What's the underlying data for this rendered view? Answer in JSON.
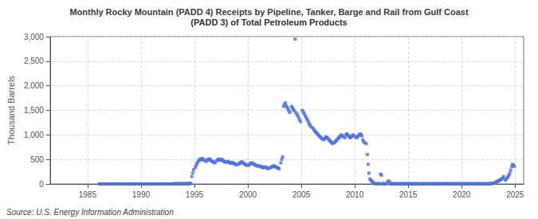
{
  "chart_data": {
    "type": "scatter",
    "title": "Monthly Rocky Mountain (PADD 4) Receipts by Pipeline, Tanker, Barge and Rail from Gulf Coast",
    "subtitle": "(PADD 3) of Total Petroleum Products",
    "ylabel": "Thousand Barrels",
    "source": "Source: U.S. Energy Information Administration",
    "marker": "square",
    "grid": true,
    "xlim": [
      1981.5,
      2025.8
    ],
    "xticks": [
      1985,
      1990,
      1995,
      2000,
      2005,
      2010,
      2015,
      2020,
      2025
    ],
    "ylim": [
      0,
      3000
    ],
    "yticks": [
      0,
      500,
      {
        "value": 1000,
        "label": "1,000"
      },
      {
        "value": 1500,
        "label": "1,500"
      },
      {
        "value": 2000,
        "label": "2,000"
      },
      {
        "value": 2500,
        "label": "2,500"
      },
      {
        "value": 3000,
        "label": "3,000"
      }
    ],
    "x": [
      1986.08,
      1986.17,
      1986.25,
      1986.33,
      1986.42,
      1986.5,
      1986.58,
      1986.67,
      1986.75,
      1986.83,
      1986.92,
      1987.08,
      1987.17,
      1987.25,
      1987.33,
      1987.42,
      1987.5,
      1987.58,
      1987.67,
      1987.75,
      1987.83,
      1987.92,
      1988.08,
      1988.17,
      1988.25,
      1988.33,
      1988.42,
      1988.5,
      1988.58,
      1988.67,
      1988.75,
      1988.83,
      1988.92,
      1989.08,
      1989.17,
      1989.25,
      1989.33,
      1989.42,
      1989.5,
      1989.58,
      1989.67,
      1989.75,
      1989.83,
      1989.92,
      1990.08,
      1990.17,
      1990.25,
      1990.33,
      1990.42,
      1990.5,
      1990.58,
      1990.67,
      1990.75,
      1990.83,
      1990.92,
      1991.08,
      1991.17,
      1991.25,
      1991.33,
      1991.42,
      1991.5,
      1991.58,
      1991.67,
      1991.75,
      1991.83,
      1991.92,
      1992.08,
      1992.17,
      1992.25,
      1992.33,
      1992.42,
      1992.5,
      1992.58,
      1992.67,
      1992.75,
      1992.83,
      1992.92,
      1993.08,
      1993.17,
      1993.25,
      1993.33,
      1993.42,
      1993.5,
      1993.58,
      1993.67,
      1993.75,
      1993.83,
      1993.92,
      1994.08,
      1994.17,
      1994.25,
      1994.33,
      1994.42,
      1994.5,
      1994.58,
      1994.67,
      1994.75,
      1994.83,
      1994.92,
      1995.08,
      1995.17,
      1995.25,
      1995.33,
      1995.42,
      1995.5,
      1995.58,
      1995.67,
      1995.75,
      1995.83,
      1995.92,
      1996.08,
      1996.17,
      1996.25,
      1996.33,
      1996.42,
      1996.5,
      1996.58,
      1996.67,
      1996.75,
      1996.83,
      1996.92,
      1997.08,
      1997.17,
      1997.25,
      1997.33,
      1997.42,
      1997.5,
      1997.58,
      1997.67,
      1997.75,
      1997.83,
      1997.92,
      1998.08,
      1998.17,
      1998.25,
      1998.33,
      1998.42,
      1998.5,
      1998.58,
      1998.67,
      1998.75,
      1998.83,
      1998.92,
      1999.08,
      1999.17,
      1999.25,
      1999.33,
      1999.42,
      1999.5,
      1999.58,
      1999.67,
      1999.75,
      1999.83,
      1999.92,
      2000.08,
      2000.17,
      2000.25,
      2000.33,
      2000.42,
      2000.5,
      2000.58,
      2000.67,
      2000.75,
      2000.83,
      2000.92,
      2001.08,
      2001.17,
      2001.25,
      2001.33,
      2001.42,
      2001.5,
      2001.58,
      2001.67,
      2001.75,
      2001.83,
      2001.92,
      2002.08,
      2002.17,
      2002.25,
      2002.33,
      2002.42,
      2002.5,
      2002.58,
      2002.67,
      2002.75,
      2002.83,
      2002.92,
      2003.08,
      2003.17,
      2003.25,
      2003.33,
      2003.42,
      2003.5,
      2003.58,
      2003.67,
      2003.75,
      2003.83,
      2003.92,
      2004.08,
      2004.17,
      2004.25,
      2004.33,
      2004.42,
      2004.5,
      2004.58,
      2004.67,
      2004.75,
      2004.83,
      2004.92,
      2005.08,
      2005.17,
      2005.25,
      2005.33,
      2005.42,
      2005.5,
      2005.58,
      2005.67,
      2005.75,
      2005.83,
      2005.92,
      2006.08,
      2006.17,
      2006.25,
      2006.33,
      2006.42,
      2006.5,
      2006.58,
      2006.67,
      2006.75,
      2006.83,
      2006.92,
      2007.08,
      2007.17,
      2007.25,
      2007.33,
      2007.42,
      2007.5,
      2007.58,
      2007.67,
      2007.75,
      2007.83,
      2007.92,
      2008.08,
      2008.17,
      2008.25,
      2008.33,
      2008.42,
      2008.5,
      2008.58,
      2008.67,
      2008.75,
      2008.83,
      2008.92,
      2009.08,
      2009.17,
      2009.25,
      2009.33,
      2009.42,
      2009.5,
      2009.58,
      2009.67,
      2009.75,
      2009.83,
      2009.92,
      2010.08,
      2010.17,
      2010.25,
      2010.33,
      2010.42,
      2010.5,
      2010.58,
      2010.67,
      2010.75,
      2010.83,
      2010.92,
      2011.08,
      2011.17,
      2011.25,
      2011.33,
      2011.42,
      2011.5,
      2011.58,
      2011.67,
      2011.75,
      2011.83,
      2011.92,
      2012.08,
      2012.17,
      2012.25,
      2012.33,
      2012.42,
      2012.5,
      2012.58,
      2012.67,
      2012.75,
      2012.83,
      2012.92,
      2013.08,
      2013.17,
      2013.25,
      2013.33,
      2013.42,
      2013.5,
      2013.58,
      2013.67,
      2013.75,
      2013.83,
      2013.92,
      2014.08,
      2014.17,
      2014.25,
      2014.33,
      2014.42,
      2014.5,
      2014.58,
      2014.67,
      2014.75,
      2014.83,
      2014.92,
      2015.08,
      2015.17,
      2015.25,
      2015.33,
      2015.42,
      2015.5,
      2015.58,
      2015.67,
      2015.75,
      2015.83,
      2015.92,
      2016.08,
      2016.17,
      2016.25,
      2016.33,
      2016.42,
      2016.5,
      2016.58,
      2016.67,
      2016.75,
      2016.83,
      2016.92,
      2017.08,
      2017.17,
      2017.25,
      2017.33,
      2017.42,
      2017.5,
      2017.58,
      2017.67,
      2017.75,
      2017.83,
      2017.92,
      2018.08,
      2018.17,
      2018.25,
      2018.33,
      2018.42,
      2018.5,
      2018.58,
      2018.67,
      2018.75,
      2018.83,
      2018.92,
      2019.08,
      2019.17,
      2019.25,
      2019.33,
      2019.42,
      2019.5,
      2019.58,
      2019.67,
      2019.75,
      2019.83,
      2019.92,
      2020.08,
      2020.17,
      2020.25,
      2020.33,
      2020.42,
      2020.5,
      2020.58,
      2020.67,
      2020.75,
      2020.83,
      2020.92,
      2021.08,
      2021.17,
      2021.25,
      2021.33,
      2021.42,
      2021.5,
      2021.58,
      2021.67,
      2021.75,
      2021.83,
      2021.92,
      2022.08,
      2022.17,
      2022.25,
      2022.33,
      2022.42,
      2022.5,
      2022.58,
      2022.67,
      2022.75,
      2022.83,
      2022.92,
      2023.08,
      2023.17,
      2023.25,
      2023.33,
      2023.42,
      2023.5,
      2023.58,
      2023.67,
      2023.75,
      2023.83,
      2023.92,
      2024.08,
      2024.17,
      2024.25,
      2024.33,
      2024.42,
      2024.5,
      2024.58,
      2024.67,
      2024.75,
      2024.83,
      2024.92
    ],
    "values": [
      0,
      0,
      0,
      0,
      0,
      0,
      0,
      0,
      0,
      0,
      0,
      0,
      0,
      0,
      0,
      0,
      0,
      0,
      0,
      0,
      0,
      0,
      0,
      0,
      0,
      0,
      0,
      0,
      0,
      0,
      0,
      0,
      0,
      0,
      0,
      0,
      0,
      0,
      0,
      0,
      0,
      0,
      0,
      0,
      0,
      0,
      0,
      0,
      0,
      0,
      0,
      0,
      0,
      0,
      0,
      0,
      0,
      0,
      0,
      0,
      0,
      0,
      0,
      0,
      0,
      0,
      0,
      0,
      0,
      0,
      0,
      0,
      0,
      0,
      0,
      0,
      0,
      5,
      4,
      3,
      6,
      4,
      5,
      3,
      4,
      6,
      5,
      3,
      8,
      6,
      7,
      5,
      6,
      8,
      10,
      9,
      150,
      220,
      290,
      340,
      380,
      420,
      460,
      480,
      500,
      510,
      490,
      520,
      500,
      480,
      460,
      480,
      500,
      490,
      510,
      490,
      470,
      460,
      450,
      440,
      430,
      470,
      490,
      500,
      510,
      490,
      480,
      500,
      480,
      460,
      450,
      440,
      460,
      450,
      440,
      430,
      420,
      440,
      430,
      420,
      410,
      400,
      390,
      400,
      410,
      420,
      440,
      450,
      440,
      420,
      410,
      400,
      390,
      380,
      380,
      400,
      420,
      430,
      420,
      410,
      400,
      390,
      380,
      370,
      360,
      370,
      360,
      350,
      340,
      330,
      340,
      350,
      340,
      330,
      320,
      310,
      330,
      340,
      350,
      360,
      370,
      360,
      350,
      340,
      330,
      320,
      310,
      430,
      500,
      550,
      1580,
      1620,
      1650,
      1590,
      1560,
      1530,
      1490,
      1460,
      1580,
      1550,
      1520,
      1490,
      2950,
      1450,
      1420,
      1390,
      1350,
      1310,
      1270,
      1500,
      1470,
      1440,
      1400,
      1370,
      1330,
      1300,
      1260,
      1220,
      1190,
      1160,
      1140,
      1110,
      1080,
      1060,
      1040,
      1020,
      1000,
      980,
      960,
      940,
      920,
      900,
      920,
      940,
      960,
      940,
      920,
      900,
      880,
      860,
      840,
      820,
      840,
      860,
      880,
      900,
      920,
      940,
      960,
      980,
      1000,
      980,
      960,
      940,
      1000,
      1020,
      1000,
      980,
      960,
      940,
      960,
      980,
      1000,
      980,
      960,
      940,
      960,
      980,
      1000,
      1020,
      1000,
      980,
      900,
      860,
      840,
      820,
      600,
      400,
      220,
      100,
      80,
      60,
      40,
      20,
      10,
      5,
      3,
      4,
      5,
      4,
      200,
      180,
      5,
      4,
      5,
      4,
      3,
      50,
      60,
      40,
      3,
      4,
      3,
      4,
      3,
      4,
      3,
      4,
      3,
      4,
      3,
      4,
      3,
      4,
      3,
      4,
      3,
      4,
      3,
      3,
      4,
      3,
      4,
      3,
      4,
      3,
      4,
      3,
      4,
      3,
      3,
      4,
      3,
      4,
      3,
      4,
      3,
      4,
      3,
      4,
      3,
      3,
      4,
      3,
      4,
      3,
      4,
      3,
      4,
      3,
      4,
      3,
      3,
      4,
      3,
      4,
      3,
      4,
      3,
      4,
      3,
      4,
      3,
      3,
      4,
      3,
      4,
      3,
      4,
      3,
      4,
      3,
      4,
      3,
      3,
      4,
      3,
      4,
      3,
      4,
      3,
      4,
      3,
      4,
      3,
      3,
      4,
      3,
      4,
      3,
      4,
      3,
      4,
      3,
      4,
      3,
      3,
      4,
      3,
      4,
      3,
      4,
      5,
      6,
      8,
      10,
      15,
      20,
      30,
      40,
      50,
      60,
      70,
      80,
      90,
      100,
      120,
      150,
      80,
      100,
      120,
      150,
      180,
      220,
      280,
      350,
      400,
      380,
      360
    ]
  }
}
